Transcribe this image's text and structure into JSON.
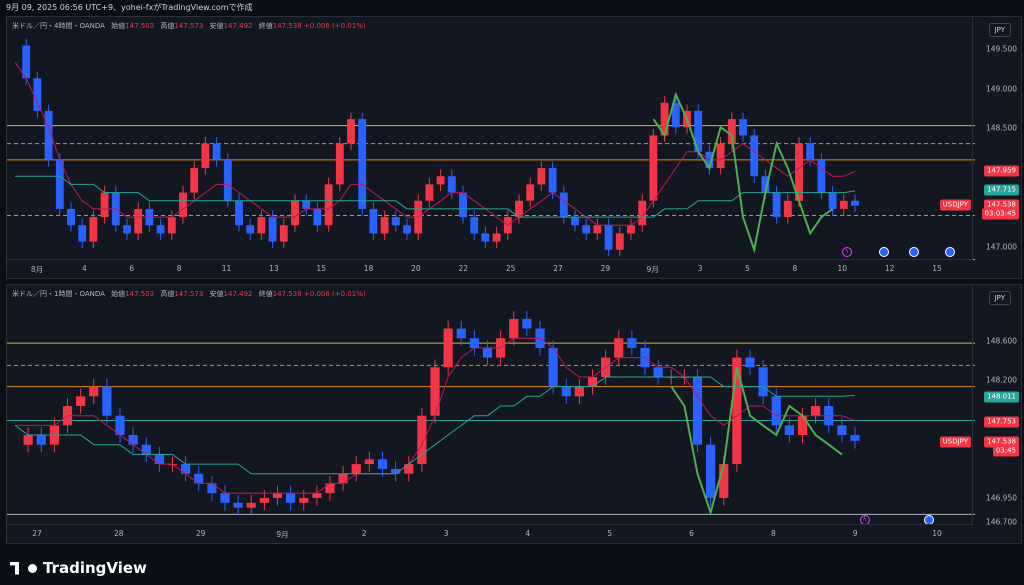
{
  "header": {
    "text": "9月 09, 2025 06:56 UTC+9、yohei-fxがTradingView.comで作成"
  },
  "colors": {
    "up": "#f23645",
    "down": "#2962ff",
    "bg": "#131722",
    "ma_fast": "#c2185b",
    "ma_slow": "#26a69a",
    "level_yellow": "#d4b933",
    "level_orange": "#e08a1e",
    "pattern": "#4caf50"
  },
  "pane1": {
    "legend": {
      "symbol": "米ドル／円・4時間・OANDA",
      "o_label": "始値",
      "o": "147.503",
      "h_label": "高値",
      "h": "147.573",
      "l_label": "安値",
      "l": "147.492",
      "c_label": "終値",
      "c": "147.538",
      "chg": "+0.008 (+0.01%)"
    },
    "currency": "JPY",
    "price_ticks": [
      "149.500",
      "149.000",
      "148.500",
      "147.000"
    ],
    "tags": {
      "ma1": "147.959",
      "ma2": "147.715",
      "symbol": "USDJPY",
      "price": "147.538",
      "countdown": "03:03:45"
    },
    "time_ticks": [
      "8月",
      "4",
      "6",
      "8",
      "11",
      "13",
      "15",
      "18",
      "20",
      "22",
      "25",
      "27",
      "29",
      "9月",
      "3",
      "5",
      "8",
      "10",
      "12",
      "15"
    ]
  },
  "pane2": {
    "legend": {
      "symbol": "米ドル／円・1時間・OANDA",
      "o_label": "始値",
      "o": "147.503",
      "h_label": "高値",
      "h": "147.573",
      "l_label": "安値",
      "l": "147.492",
      "c_label": "終値",
      "c": "147.538",
      "chg": "+0.008 (+0.01%)"
    },
    "currency": "JPY",
    "price_ticks": [
      "148.600",
      "148.200",
      "146.950",
      "146.700"
    ],
    "tags": {
      "ma1": "148.011",
      "ma2": "147.753",
      "symbol": "USDJPY",
      "price": "147.538",
      "countdown": "03:45"
    },
    "time_ticks": [
      "27",
      "28",
      "29",
      "9月",
      "2",
      "3",
      "4",
      "5",
      "6",
      "8",
      "9",
      "10"
    ]
  },
  "footer": {
    "brand": "TradingView"
  },
  "chart_data": [
    {
      "type": "candlestick",
      "title": "米ドル／円・4時間・OANDA",
      "ylim": [
        146.85,
        149.85
      ],
      "series": [
        {
          "name": "USDJPY",
          "values": [
            149.5,
            149.1,
            148.7,
            148.1,
            147.5,
            147.3,
            147.1,
            147.4,
            147.7,
            147.3,
            147.2,
            147.5,
            147.3,
            147.2,
            147.4,
            147.7,
            148.0,
            148.3,
            148.1,
            147.6,
            147.3,
            147.2,
            147.4,
            147.1,
            147.3,
            147.6,
            147.5,
            147.3,
            147.8,
            148.3,
            148.6,
            147.5,
            147.2,
            147.4,
            147.3,
            147.2,
            147.6,
            147.8,
            147.9,
            147.7,
            147.4,
            147.2,
            147.1,
            147.2,
            147.4,
            147.6,
            147.8,
            148.0,
            147.7,
            147.4,
            147.3,
            147.2,
            147.3,
            147.0,
            147.2,
            147.3,
            147.6,
            148.4,
            148.8,
            148.5,
            148.7,
            148.2,
            148.0,
            148.3,
            148.6,
            148.4,
            147.9,
            147.7,
            147.4,
            147.6,
            148.3,
            148.1,
            147.7,
            147.5,
            147.6,
            147.54
          ]
        },
        {
          "name": "MA fast",
          "values": [
            149.3,
            149.1,
            148.8,
            148.5,
            148.1,
            147.8,
            147.6,
            147.5,
            147.5,
            147.5,
            147.4,
            147.4,
            147.4,
            147.4,
            147.4,
            147.5,
            147.6,
            147.7,
            147.8,
            147.8,
            147.7,
            147.6,
            147.5,
            147.4,
            147.4,
            147.4,
            147.5,
            147.5,
            147.5,
            147.6,
            147.8,
            147.8,
            147.7,
            147.6,
            147.5,
            147.4,
            147.4,
            147.5,
            147.6,
            147.7,
            147.7,
            147.6,
            147.5,
            147.4,
            147.3,
            147.4,
            147.5,
            147.6,
            147.7,
            147.6,
            147.5,
            147.4,
            147.3,
            147.3,
            147.3,
            147.3,
            147.4,
            147.6,
            147.8,
            148.0,
            148.2,
            148.2,
            148.1,
            148.1,
            148.2,
            148.3,
            148.2,
            148.1,
            148.0,
            147.9,
            148.0,
            148.1,
            148.0,
            147.9,
            147.9,
            147.96
          ]
        },
        {
          "name": "MA slow",
          "values": [
            147.9,
            147.9,
            147.9,
            147.9,
            147.9,
            147.8,
            147.8,
            147.8,
            147.7,
            147.7,
            147.7,
            147.7,
            147.6,
            147.6,
            147.6,
            147.6,
            147.6,
            147.6,
            147.6,
            147.6,
            147.6,
            147.6,
            147.6,
            147.6,
            147.6,
            147.6,
            147.6,
            147.6,
            147.6,
            147.6,
            147.6,
            147.6,
            147.6,
            147.6,
            147.6,
            147.5,
            147.5,
            147.5,
            147.5,
            147.5,
            147.5,
            147.5,
            147.5,
            147.5,
            147.5,
            147.4,
            147.4,
            147.4,
            147.4,
            147.4,
            147.4,
            147.4,
            147.4,
            147.4,
            147.4,
            147.4,
            147.4,
            147.4,
            147.5,
            147.5,
            147.5,
            147.6,
            147.6,
            147.6,
            147.6,
            147.7,
            147.7,
            147.7,
            147.7,
            147.7,
            147.7,
            147.7,
            147.7,
            147.7,
            147.7,
            147.72
          ]
        }
      ],
      "levels": [
        148.52,
        148.3,
        148.1,
        147.42,
        146.88
      ]
    },
    {
      "type": "candlestick",
      "title": "米ドル／円・1時間・OANDA",
      "ylim": [
        146.65,
        149.15
      ],
      "series": [
        {
          "name": "USDJPY",
          "values": [
            147.5,
            147.6,
            147.5,
            147.7,
            147.9,
            148.0,
            148.1,
            147.8,
            147.6,
            147.5,
            147.4,
            147.3,
            147.3,
            147.2,
            147.1,
            147.0,
            146.9,
            146.85,
            146.9,
            146.95,
            147.0,
            146.9,
            146.95,
            147.0,
            147.1,
            147.2,
            147.3,
            147.35,
            147.25,
            147.2,
            147.3,
            147.8,
            148.3,
            148.7,
            148.6,
            148.5,
            148.4,
            148.6,
            148.8,
            148.7,
            148.5,
            148.1,
            148.0,
            148.1,
            148.2,
            148.4,
            148.6,
            148.5,
            148.3,
            148.2,
            148.2,
            148.2,
            147.5,
            146.95,
            147.3,
            148.4,
            148.3,
            148.0,
            147.7,
            147.6,
            147.8,
            147.9,
            147.7,
            147.6,
            147.54
          ]
        },
        {
          "name": "MA fast",
          "values": [
            147.7,
            147.7,
            147.7,
            147.7,
            147.8,
            147.8,
            147.8,
            147.7,
            147.6,
            147.5,
            147.4,
            147.3,
            147.3,
            147.2,
            147.1,
            147.1,
            147.0,
            147.0,
            147.0,
            147.0,
            147.0,
            147.0,
            147.0,
            147.0,
            147.1,
            147.1,
            147.2,
            147.2,
            147.2,
            147.2,
            147.3,
            147.5,
            147.8,
            148.2,
            148.4,
            148.5,
            148.5,
            148.5,
            148.6,
            148.6,
            148.6,
            148.5,
            148.3,
            148.2,
            148.2,
            148.3,
            148.4,
            148.4,
            148.4,
            148.3,
            148.3,
            148.2,
            148.0,
            147.8,
            147.7,
            147.8,
            147.9,
            147.9,
            147.8,
            147.8,
            147.8,
            147.8,
            147.8,
            147.8,
            147.75
          ]
        },
        {
          "name": "MA slow",
          "values": [
            147.7,
            147.6,
            147.6,
            147.6,
            147.6,
            147.6,
            147.5,
            147.5,
            147.5,
            147.4,
            147.4,
            147.4,
            147.4,
            147.3,
            147.3,
            147.3,
            147.3,
            147.3,
            147.2,
            147.2,
            147.2,
            147.2,
            147.2,
            147.2,
            147.2,
            147.2,
            147.2,
            147.2,
            147.2,
            147.2,
            147.3,
            147.4,
            147.5,
            147.6,
            147.7,
            147.8,
            147.8,
            147.9,
            147.9,
            148.0,
            148.0,
            148.1,
            148.1,
            148.1,
            148.1,
            148.2,
            148.2,
            148.2,
            148.2,
            148.2,
            148.2,
            148.2,
            148.2,
            148.2,
            148.1,
            148.1,
            148.1,
            148.1,
            148.0,
            148.0,
            148.0,
            148.0,
            148.0,
            148.0,
            148.01
          ]
        }
      ],
      "levels": [
        148.55,
        148.32,
        148.1,
        147.75,
        146.78
      ]
    }
  ]
}
